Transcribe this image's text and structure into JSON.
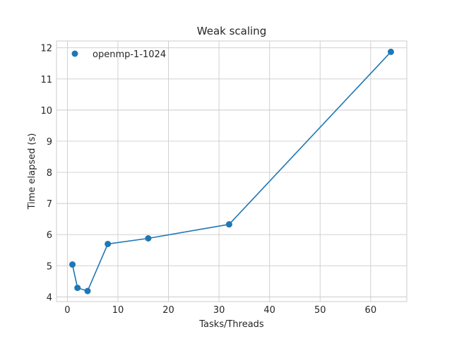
{
  "chart_data": {
    "type": "line",
    "title": "Weak scaling",
    "xlabel": "Tasks/Threads",
    "ylabel": "Time elapsed (s)",
    "xlim": [
      -2.15,
      67.15
    ],
    "ylim": [
      3.85,
      12.22
    ],
    "xticks": [
      0,
      10,
      20,
      30,
      40,
      50,
      60
    ],
    "yticks": [
      4,
      5,
      6,
      7,
      8,
      9,
      10,
      11,
      12
    ],
    "grid": true,
    "legend_position": "upper-left",
    "series": [
      {
        "name": "openmp-1-1024",
        "color": "#1f77b4",
        "x": [
          1,
          2,
          4,
          8,
          16,
          32,
          64
        ],
        "y": [
          5.04,
          4.29,
          4.19,
          5.7,
          5.88,
          6.33,
          11.87
        ]
      }
    ]
  }
}
